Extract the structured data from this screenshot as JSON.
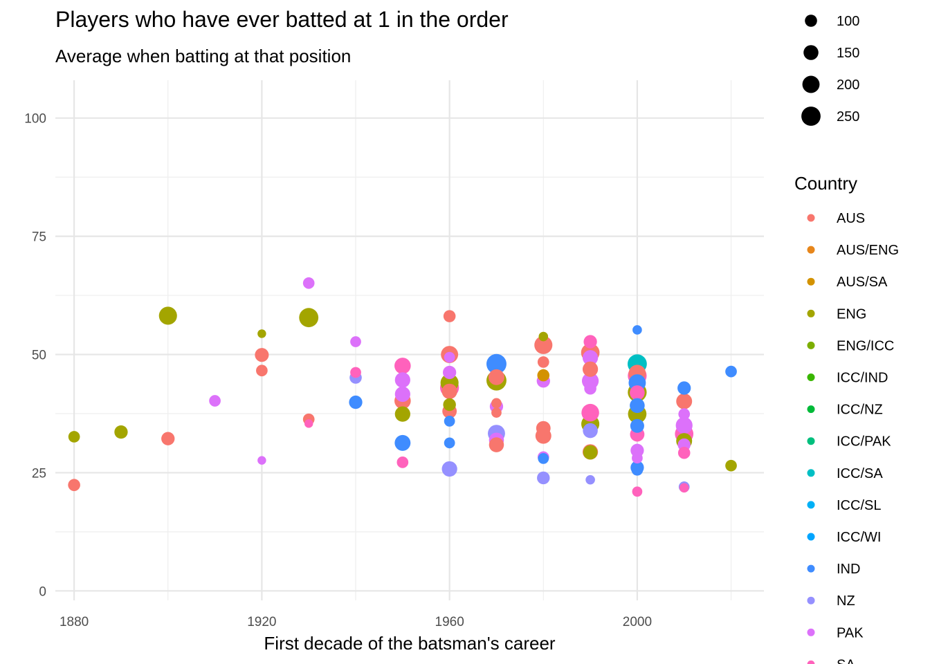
{
  "chart_data": {
    "type": "scatter",
    "title": "Players who have ever batted at 1 in the order",
    "subtitle": "Average when batting at that position",
    "xlabel": "First decade of the batsman's career",
    "ylabel": "",
    "xlim": [
      1876,
      2027
    ],
    "ylim": [
      -2,
      108
    ],
    "x_ticks": [
      1880,
      1920,
      1960,
      2000
    ],
    "y_ticks": [
      0,
      25,
      50,
      75,
      100
    ],
    "grid": true,
    "size_legend": {
      "title": "",
      "values": [
        100,
        150,
        200,
        250
      ]
    },
    "color_legend": {
      "title": "Country",
      "entries": [
        {
          "name": "AUS",
          "color": "#F8766D"
        },
        {
          "name": "AUS/ENG",
          "color": "#E7861B"
        },
        {
          "name": "AUS/SA",
          "color": "#D39200"
        },
        {
          "name": "ENG",
          "color": "#A3A500"
        },
        {
          "name": "ENG/ICC",
          "color": "#7CAE00"
        },
        {
          "name": "ICC/IND",
          "color": "#39B600"
        },
        {
          "name": "ICC/NZ",
          "color": "#00BA38"
        },
        {
          "name": "ICC/PAK",
          "color": "#00BF7D"
        },
        {
          "name": "ICC/SA",
          "color": "#00BFC4"
        },
        {
          "name": "ICC/SL",
          "color": "#00B0F6"
        },
        {
          "name": "ICC/WI",
          "color": "#00A5FF"
        },
        {
          "name": "IND",
          "color": "#3F8CFF"
        },
        {
          "name": "NZ",
          "color": "#9590FF"
        },
        {
          "name": "PAK",
          "color": "#DC71FA"
        },
        {
          "name": "SA",
          "color": "#FF62BC"
        }
      ]
    },
    "points": [
      {
        "x": 1880,
        "y": 22.4,
        "country": "AUS",
        "size": 100
      },
      {
        "x": 1880,
        "y": 32.6,
        "country": "ENG",
        "size": 90
      },
      {
        "x": 1890,
        "y": 33.6,
        "country": "ENG",
        "size": 120
      },
      {
        "x": 1900,
        "y": 58.2,
        "country": "ENG",
        "size": 220
      },
      {
        "x": 1900,
        "y": 32.2,
        "country": "AUS",
        "size": 120
      },
      {
        "x": 1910,
        "y": 40.2,
        "country": "PAK",
        "size": 90
      },
      {
        "x": 1920,
        "y": 54.4,
        "country": "ENG",
        "size": 50
      },
      {
        "x": 1920,
        "y": 49.9,
        "country": "AUS",
        "size": 130
      },
      {
        "x": 1920,
        "y": 46.6,
        "country": "AUS",
        "size": 90
      },
      {
        "x": 1920,
        "y": 27.6,
        "country": "PAK",
        "size": 50
      },
      {
        "x": 1930,
        "y": 65.1,
        "country": "PAK",
        "size": 90
      },
      {
        "x": 1930,
        "y": 57.8,
        "country": "ENG",
        "size": 250
      },
      {
        "x": 1930,
        "y": 36.3,
        "country": "AUS",
        "size": 90
      },
      {
        "x": 1930,
        "y": 35.4,
        "country": "SA",
        "size": 50
      },
      {
        "x": 1940,
        "y": 52.7,
        "country": "PAK",
        "size": 80
      },
      {
        "x": 1940,
        "y": 46.2,
        "country": "SA",
        "size": 80
      },
      {
        "x": 1940,
        "y": 45.1,
        "country": "NZ",
        "size": 100
      },
      {
        "x": 1940,
        "y": 39.9,
        "country": "IND",
        "size": 120
      },
      {
        "x": 1950,
        "y": 47.6,
        "country": "SA",
        "size": 180
      },
      {
        "x": 1950,
        "y": 44.6,
        "country": "PAK",
        "size": 160
      },
      {
        "x": 1950,
        "y": 41.6,
        "country": "PAK",
        "size": 160
      },
      {
        "x": 1950,
        "y": 40.2,
        "country": "AUS",
        "size": 180
      },
      {
        "x": 1950,
        "y": 37.4,
        "country": "ENG",
        "size": 160
      },
      {
        "x": 1950,
        "y": 31.3,
        "country": "IND",
        "size": 170
      },
      {
        "x": 1950,
        "y": 27.2,
        "country": "SA",
        "size": 90
      },
      {
        "x": 1960,
        "y": 58.1,
        "country": "AUS",
        "size": 100
      },
      {
        "x": 1960,
        "y": 50.0,
        "country": "AUS",
        "size": 200
      },
      {
        "x": 1960,
        "y": 49.4,
        "country": "PAK",
        "size": 80
      },
      {
        "x": 1960,
        "y": 46.2,
        "country": "PAK",
        "size": 120
      },
      {
        "x": 1960,
        "y": 44.0,
        "country": "ENG",
        "size": 220
      },
      {
        "x": 1960,
        "y": 43.0,
        "country": "SA",
        "size": 240
      },
      {
        "x": 1960,
        "y": 42.2,
        "country": "AUS",
        "size": 160
      },
      {
        "x": 1960,
        "y": 39.4,
        "country": "ENG",
        "size": 110
      },
      {
        "x": 1960,
        "y": 38.0,
        "country": "AUS",
        "size": 140
      },
      {
        "x": 1960,
        "y": 35.9,
        "country": "IND",
        "size": 80
      },
      {
        "x": 1960,
        "y": 31.3,
        "country": "IND",
        "size": 80
      },
      {
        "x": 1960,
        "y": 25.8,
        "country": "NZ",
        "size": 160
      },
      {
        "x": 1970,
        "y": 48.0,
        "country": "IND",
        "size": 270
      },
      {
        "x": 1970,
        "y": 45.2,
        "country": "AUS",
        "size": 170
      },
      {
        "x": 1970,
        "y": 44.5,
        "country": "ENG",
        "size": 270
      },
      {
        "x": 1970,
        "y": 39.7,
        "country": "AUS",
        "size": 70
      },
      {
        "x": 1970,
        "y": 39.0,
        "country": "PAK",
        "size": 120
      },
      {
        "x": 1970,
        "y": 37.7,
        "country": "AUS",
        "size": 70
      },
      {
        "x": 1970,
        "y": 33.3,
        "country": "NZ",
        "size": 200
      },
      {
        "x": 1970,
        "y": 31.9,
        "country": "PAK",
        "size": 150
      },
      {
        "x": 1970,
        "y": 30.9,
        "country": "AUS",
        "size": 150
      },
      {
        "x": 1980,
        "y": 53.8,
        "country": "ENG",
        "size": 60
      },
      {
        "x": 1980,
        "y": 52.0,
        "country": "AUS",
        "size": 220
      },
      {
        "x": 1980,
        "y": 48.4,
        "country": "AUS",
        "size": 90
      },
      {
        "x": 1980,
        "y": 45.6,
        "country": "AUS/SA",
        "size": 100
      },
      {
        "x": 1980,
        "y": 44.4,
        "country": "PAK",
        "size": 120
      },
      {
        "x": 1980,
        "y": 34.4,
        "country": "AUS",
        "size": 140
      },
      {
        "x": 1980,
        "y": 32.8,
        "country": "AUS",
        "size": 170
      },
      {
        "x": 1980,
        "y": 28.3,
        "country": "PAK",
        "size": 90
      },
      {
        "x": 1980,
        "y": 28.0,
        "country": "IND",
        "size": 80
      },
      {
        "x": 1980,
        "y": 23.9,
        "country": "NZ",
        "size": 110
      },
      {
        "x": 1990,
        "y": 52.7,
        "country": "SA",
        "size": 120
      },
      {
        "x": 1990,
        "y": 50.4,
        "country": "AUS",
        "size": 230
      },
      {
        "x": 1990,
        "y": 49.3,
        "country": "PAK",
        "size": 160
      },
      {
        "x": 1990,
        "y": 46.9,
        "country": "AUS",
        "size": 160
      },
      {
        "x": 1990,
        "y": 44.4,
        "country": "PAK",
        "size": 190
      },
      {
        "x": 1990,
        "y": 42.8,
        "country": "PAK",
        "size": 100
      },
      {
        "x": 1990,
        "y": 37.7,
        "country": "SA",
        "size": 210
      },
      {
        "x": 1990,
        "y": 35.3,
        "country": "ENG",
        "size": 220
      },
      {
        "x": 1990,
        "y": 33.9,
        "country": "NZ",
        "size": 150
      },
      {
        "x": 1990,
        "y": 29.4,
        "country": "AUS",
        "size": 160
      },
      {
        "x": 1990,
        "y": 29.3,
        "country": "ENG",
        "size": 140
      },
      {
        "x": 1990,
        "y": 23.5,
        "country": "NZ",
        "size": 60
      },
      {
        "x": 2000,
        "y": 55.2,
        "country": "IND",
        "size": 60
      },
      {
        "x": 2000,
        "y": 48.0,
        "country": "ICC/SA",
        "size": 250
      },
      {
        "x": 2000,
        "y": 46.0,
        "country": "AUS",
        "size": 200
      },
      {
        "x": 2000,
        "y": 45.5,
        "country": "SA",
        "size": 240
      },
      {
        "x": 2000,
        "y": 44.0,
        "country": "IND",
        "size": 200
      },
      {
        "x": 2000,
        "y": 42.0,
        "country": "ENG",
        "size": 240
      },
      {
        "x": 2000,
        "y": 41.9,
        "country": "SA",
        "size": 150
      },
      {
        "x": 2000,
        "y": 39.2,
        "country": "IND",
        "size": 150
      },
      {
        "x": 2000,
        "y": 37.4,
        "country": "ENG",
        "size": 230
      },
      {
        "x": 2000,
        "y": 34.9,
        "country": "IND",
        "size": 130
      },
      {
        "x": 2000,
        "y": 33.1,
        "country": "SA",
        "size": 140
      },
      {
        "x": 2000,
        "y": 29.7,
        "country": "PAK",
        "size": 120
      },
      {
        "x": 2000,
        "y": 28.1,
        "country": "PAK",
        "size": 80
      },
      {
        "x": 2000,
        "y": 26.1,
        "country": "IND",
        "size": 120
      },
      {
        "x": 2000,
        "y": 25.6,
        "country": "IND",
        "size": 90
      },
      {
        "x": 2000,
        "y": 21.0,
        "country": "SA",
        "size": 70
      },
      {
        "x": 2010,
        "y": 42.9,
        "country": "IND",
        "size": 120
      },
      {
        "x": 2010,
        "y": 40.1,
        "country": "AUS",
        "size": 170
      },
      {
        "x": 2010,
        "y": 37.4,
        "country": "PAK",
        "size": 90
      },
      {
        "x": 2010,
        "y": 35.0,
        "country": "PAK",
        "size": 190
      },
      {
        "x": 2010,
        "y": 33.2,
        "country": "SA",
        "size": 230
      },
      {
        "x": 2010,
        "y": 31.7,
        "country": "ENG",
        "size": 170
      },
      {
        "x": 2010,
        "y": 30.9,
        "country": "PAK",
        "size": 110
      },
      {
        "x": 2010,
        "y": 29.2,
        "country": "SA",
        "size": 100
      },
      {
        "x": 2010,
        "y": 22.0,
        "country": "NZ",
        "size": 80
      },
      {
        "x": 2010,
        "y": 21.8,
        "country": "SA",
        "size": 60
      },
      {
        "x": 2020,
        "y": 46.4,
        "country": "IND",
        "size": 90
      },
      {
        "x": 2020,
        "y": 26.5,
        "country": "ENG",
        "size": 90
      }
    ]
  }
}
